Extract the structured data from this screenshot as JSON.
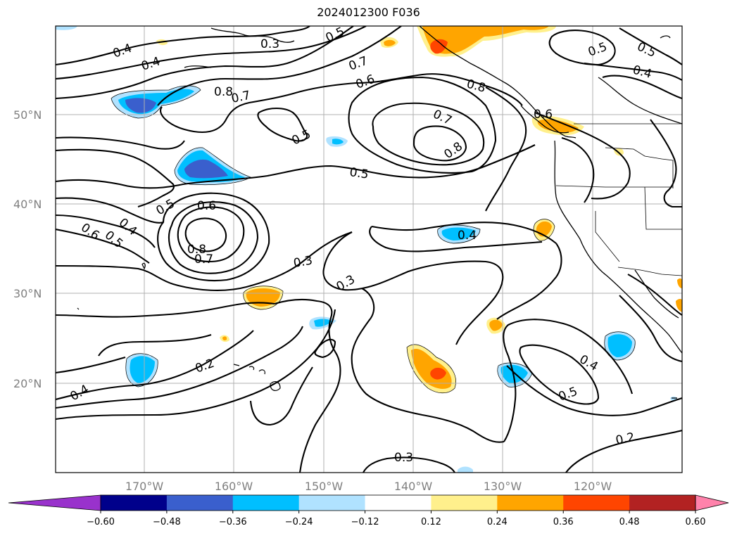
{
  "title": "2024012300 F036",
  "map": {
    "lat_labels": [
      "50°N",
      "40°N",
      "30°N",
      "20°N"
    ],
    "lon_labels": [
      "170°W",
      "160°W",
      "150°W",
      "140°W",
      "130°W",
      "120°W"
    ],
    "contour_labels": [
      "0.4",
      "0.3",
      "0.5",
      "0.4",
      "0.8",
      "0.7",
      "0.7",
      "0.6",
      "0.8",
      "0.5",
      "0.7",
      "0.8",
      "0.6",
      "0.5",
      "0.5",
      "0.6",
      "0.4",
      "0.6",
      "0.5",
      "0.8",
      "0.7",
      "0.4",
      "0.3",
      "0.3",
      "0.2",
      "0.4",
      "0.4",
      "0.5",
      "0.3",
      "0.2",
      "0.5",
      "0.4",
      "0.5"
    ]
  },
  "colorbar": {
    "ticks": [
      "−0.60",
      "−0.48",
      "−0.36",
      "−0.24",
      "−0.12",
      "0.12",
      "0.24",
      "0.36",
      "0.48",
      "0.60"
    ],
    "colors": [
      "#9932cc",
      "#00008b",
      "#3a5fcd",
      "#00bfff",
      "#b0e2ff",
      "#ffffff",
      "#fff08c",
      "#ffa500",
      "#ff4500",
      "#b22222",
      "#ff82ab"
    ]
  }
}
